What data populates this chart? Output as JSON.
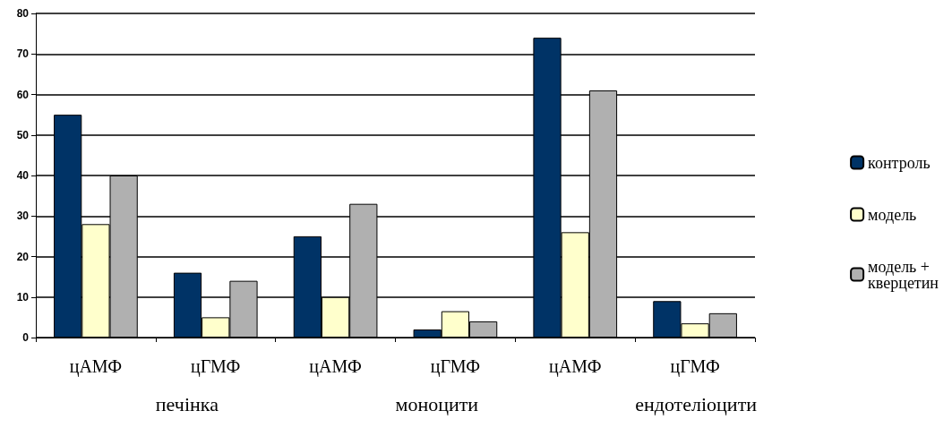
{
  "chart_data": {
    "type": "bar",
    "categories": [
      "цАМФ",
      "цГМФ",
      "цАМФ",
      "цГМФ",
      "цАМФ",
      "цГМФ"
    ],
    "series": [
      {
        "name": "контроль",
        "color": "#003366",
        "values": [
          55,
          16,
          25,
          2,
          74,
          9
        ]
      },
      {
        "name": "модель",
        "color": "#ffffcc",
        "values": [
          28,
          5,
          10,
          6.5,
          26,
          3.5
        ]
      },
      {
        "name": "модель + кверцетин",
        "color": "#b0b0b0",
        "values": [
          40,
          14,
          33,
          4,
          61,
          6
        ]
      }
    ],
    "ylim": [
      0,
      80
    ],
    "yticks": [
      0,
      10,
      20,
      30,
      40,
      50,
      60,
      70,
      80
    ],
    "grid": "y",
    "legend": "right",
    "annotations": [
      "печінка",
      "моноцити",
      "ендотеліоцити"
    ]
  }
}
